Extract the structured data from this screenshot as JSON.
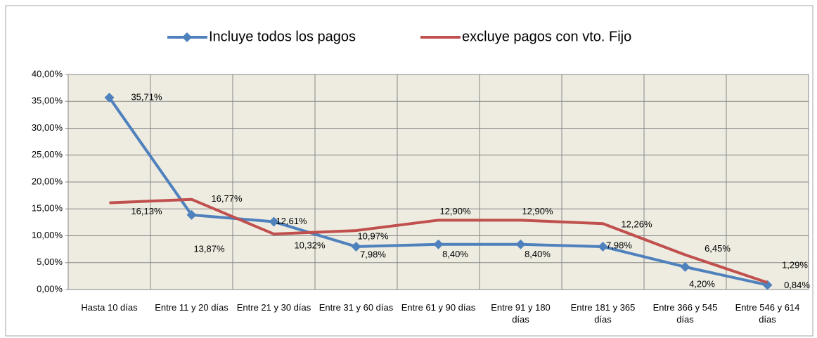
{
  "chart_data": {
    "type": "line",
    "categories": [
      "Hasta 10 días",
      "Entre 11 y 20 días",
      "Entre 21 y 30 días",
      "Entre 31 y 60 días",
      "Entre 61 y  90 días",
      "Entre 91 y 180 días",
      "Entre 181 y 365 días",
      "Entre 366 y 545 días",
      "Entre 546 y 614 días"
    ],
    "series": [
      {
        "name": "Incluye todos los pagos",
        "color": "#4f81bd",
        "marker": "diamond",
        "values": [
          35.71,
          13.87,
          12.61,
          7.98,
          8.4,
          8.4,
          7.98,
          4.2,
          0.84
        ],
        "value_labels": [
          "35,71%",
          "13,87%",
          "12,61%",
          "7,98%",
          "8,40%",
          "8,40%",
          "7,98%",
          "4,20%",
          "0,84%"
        ]
      },
      {
        "name": "excluye pagos con vto. Fijo",
        "color": "#c0504d",
        "values": [
          16.13,
          16.77,
          10.32,
          10.97,
          12.9,
          12.9,
          12.26,
          6.45,
          1.29
        ],
        "value_labels": [
          "16,13%",
          "16,77%",
          "10,32%",
          "10,97%",
          "12,90%",
          "12,90%",
          "12,26%",
          "6,45%",
          "1,29%"
        ]
      }
    ],
    "ylim": [
      0,
      40
    ],
    "yticks": [
      {
        "value": 0,
        "label": "0,00%"
      },
      {
        "value": 5,
        "label": "5,00%"
      },
      {
        "value": 10,
        "label": "10,00%"
      },
      {
        "value": 15,
        "label": "15,00%"
      },
      {
        "value": 20,
        "label": "20,00%"
      },
      {
        "value": 25,
        "label": "25,00%"
      },
      {
        "value": 30,
        "label": "30,00%"
      },
      {
        "value": 35,
        "label": "35,00%"
      },
      {
        "value": 40,
        "label": "40,00%"
      }
    ],
    "grid": true,
    "legend": "top"
  }
}
